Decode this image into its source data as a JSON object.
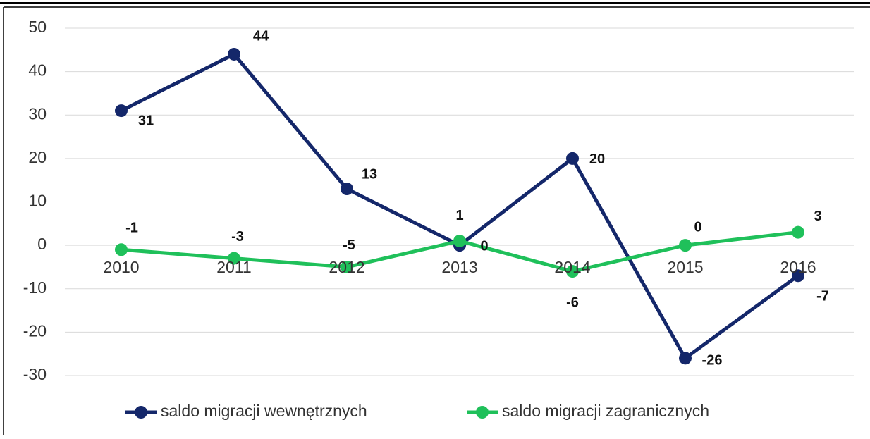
{
  "chart_data": {
    "type": "line",
    "categories": [
      "2010",
      "2011",
      "2012",
      "2013",
      "2014",
      "2015",
      "2016"
    ],
    "series": [
      {
        "name": "saldo migracji wewnętrznych",
        "color": "#14276a",
        "values": [
          31,
          44,
          13,
          0,
          20,
          -26,
          -7
        ]
      },
      {
        "name": "saldo migracji zagranicznych",
        "color": "#1fc05a",
        "values": [
          -1,
          -3,
          -5,
          1,
          -6,
          0,
          3
        ]
      }
    ],
    "ylim": [
      -30,
      50
    ],
    "yticks": [
      -30,
      -20,
      -10,
      0,
      10,
      20,
      30,
      40,
      50
    ],
    "grid": true,
    "legend": "bottom"
  }
}
